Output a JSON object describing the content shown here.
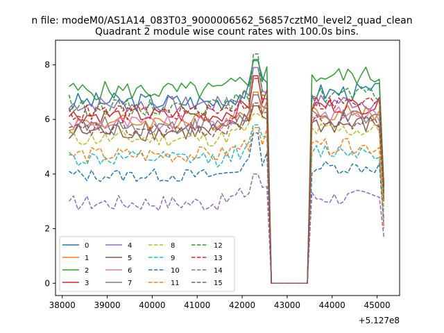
{
  "chart_data": {
    "type": "line",
    "suptitle": "n file: modeM0/AS1A14_083T03_9000006562_56857cztM0_level2_quad_clean",
    "title": "Quadrant 2 module wise count rates with 100.0s bins.",
    "xlabel": "",
    "ylabel": "",
    "x_offset_label": "+5.127e8",
    "xlim": [
      37850,
      45500
    ],
    "ylim": [
      -0.45,
      8.9
    ],
    "xticks": [
      38000,
      39000,
      40000,
      41000,
      42000,
      43000,
      44000,
      45000
    ],
    "xtick_labels": [
      "38000",
      "39000",
      "40000",
      "41000",
      "42000",
      "43000",
      "44000",
      "45000"
    ],
    "yticks": [
      0,
      2,
      4,
      6,
      8
    ],
    "ytick_labels": [
      "0",
      "2",
      "4",
      "6",
      "8"
    ],
    "grid": false,
    "legend_position": "lower-left",
    "legend_columns": 4,
    "series": [
      {
        "name": "0",
        "color": "#1f77b4",
        "style": "solid",
        "base": 6.65,
        "amp": 0.35,
        "gap": 0,
        "after": 0.35,
        "peak": 8.15,
        "start": 6.3,
        "end": 3.5
      },
      {
        "name": "1",
        "color": "#ff7f0e",
        "style": "solid",
        "base": 5.9,
        "amp": 0.3,
        "gap": 0,
        "after": 0.35,
        "peak": 7.0,
        "start": 5.6,
        "end": 3.2
      },
      {
        "name": "2",
        "color": "#2ca02c",
        "style": "solid",
        "base": 7.05,
        "amp": 0.35,
        "gap": 0,
        "after": 0.55,
        "peak": 8.2,
        "start": 7.2,
        "end": 3.6
      },
      {
        "name": "3",
        "color": "#d62728",
        "style": "solid",
        "base": 6.15,
        "amp": 0.3,
        "gap": 0,
        "after": 0.35,
        "peak": 7.6,
        "start": 6.1,
        "end": 3.3
      },
      {
        "name": "4",
        "color": "#9467bd",
        "style": "solid",
        "base": 6.55,
        "amp": 0.3,
        "gap": 0,
        "after": 0.1,
        "peak": 7.9,
        "start": 6.4,
        "end": 3.4
      },
      {
        "name": "5",
        "color": "#8c564b",
        "style": "solid",
        "base": 5.55,
        "amp": 0.35,
        "gap": 0,
        "after": 0.25,
        "peak": 6.5,
        "start": 5.3,
        "end": 3.0
      },
      {
        "name": "6",
        "color": "#e377c2",
        "style": "solid",
        "base": 5.85,
        "amp": 0.3,
        "gap": 0,
        "after": 0.35,
        "peak": 6.9,
        "start": 5.9,
        "end": 3.3
      },
      {
        "name": "7",
        "color": "#7f7f7f",
        "style": "solid",
        "base": 5.75,
        "amp": 0.35,
        "gap": 0,
        "after": 0.25,
        "peak": 6.9,
        "start": 5.6,
        "end": 3.3
      },
      {
        "name": "8",
        "color": "#bcbd22",
        "style": "dashed",
        "base": 5.3,
        "amp": 0.3,
        "gap": 0,
        "after": 0.3,
        "peak": 6.2,
        "start": 5.5,
        "end": 2.7
      },
      {
        "name": "9",
        "color": "#17becf",
        "style": "dashed",
        "base": 4.55,
        "amp": 0.3,
        "gap": 0,
        "after": 0.3,
        "peak": 5.8,
        "start": 4.7,
        "end": 2.4
      },
      {
        "name": "10",
        "color": "#1f77b4",
        "style": "dashed",
        "base": 3.95,
        "amp": 0.25,
        "gap": 0,
        "after": 0.3,
        "peak": 5.5,
        "start": 4.1,
        "end": 2.1
      },
      {
        "name": "11",
        "color": "#ff7f0e",
        "style": "dashed",
        "base": 4.7,
        "amp": 0.3,
        "gap": 0,
        "after": 0.3,
        "peak": 5.7,
        "start": 4.8,
        "end": 2.0
      },
      {
        "name": "12",
        "color": "#2ca02c",
        "style": "dashed",
        "base": 6.45,
        "amp": 0.3,
        "gap": 0,
        "after": 0.45,
        "peak": 8.4,
        "start": 6.9,
        "end": 3.4
      },
      {
        "name": "13",
        "color": "#d62728",
        "style": "dashed",
        "base": 6.25,
        "amp": 0.3,
        "gap": 0,
        "after": 0.35,
        "peak": 7.5,
        "start": 6.4,
        "end": 3.5
      },
      {
        "name": "14",
        "color": "#9467bd",
        "style": "dashed",
        "base": 2.95,
        "amp": 0.3,
        "gap": 0,
        "after": 0.2,
        "peak": 4.0,
        "start": 3.0,
        "end": 1.7
      },
      {
        "name": "15",
        "color": "#8c564b",
        "style": "dashed",
        "base": 5.6,
        "amp": 0.3,
        "gap": 0,
        "after": 0.3,
        "peak": 6.6,
        "start": 5.7,
        "end": 3.0
      }
    ],
    "x_start": 38150,
    "x_end": 45150,
    "step": 100,
    "gap_start": 42600,
    "gap_end": 43500,
    "peak_x": 42300
  }
}
